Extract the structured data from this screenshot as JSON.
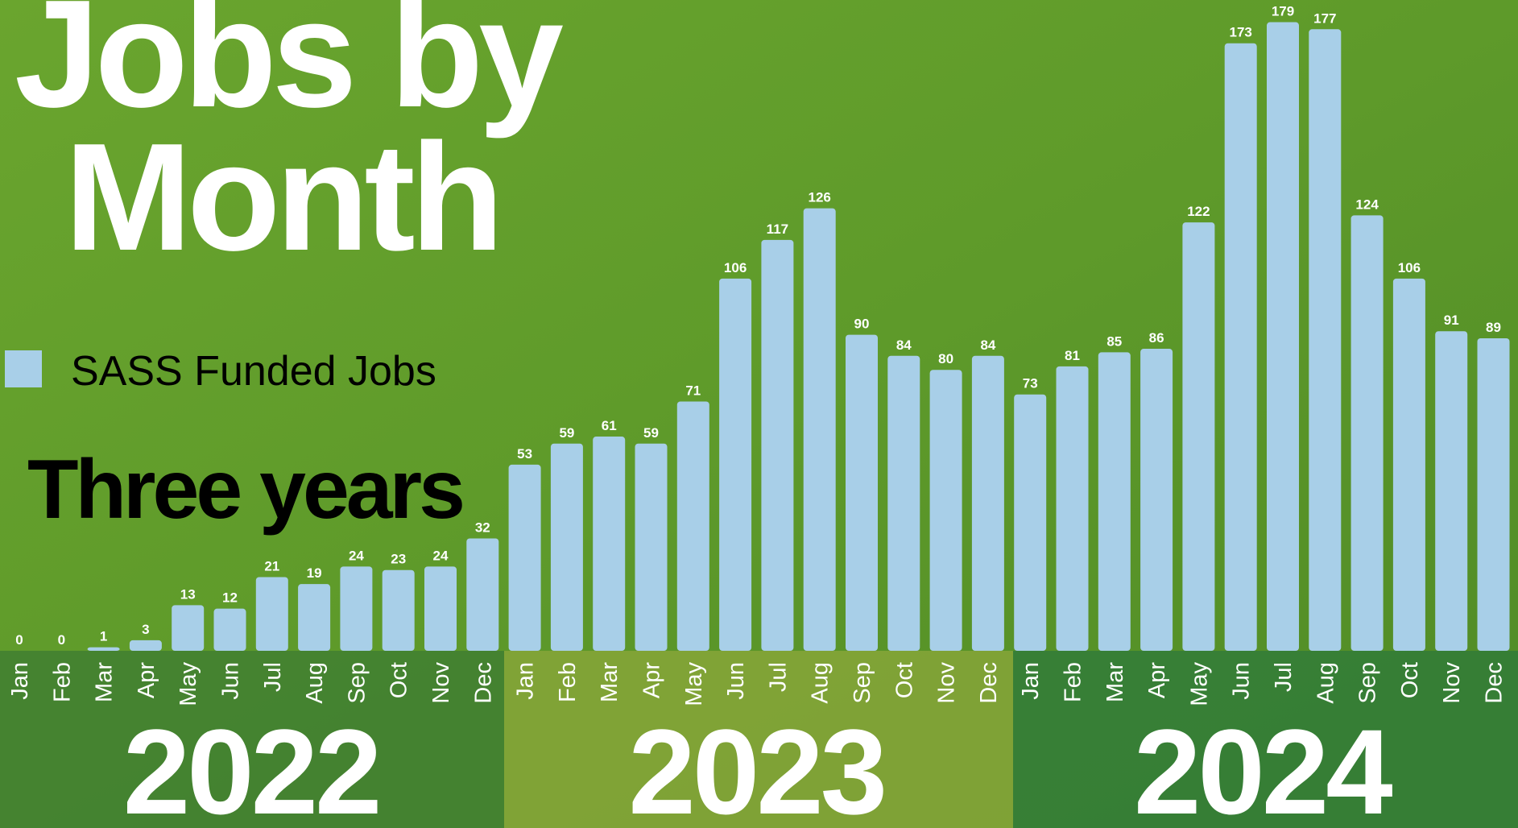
{
  "chart_data": {
    "type": "bar",
    "title": "Jobs by Month",
    "subtitle": "Three years",
    "categories": [
      "Jan",
      "Feb",
      "Mar",
      "Apr",
      "May",
      "Jun",
      "Jul",
      "Aug",
      "Sep",
      "Oct",
      "Nov",
      "Dec",
      "Jan",
      "Feb",
      "Mar",
      "Apr",
      "May",
      "Jun",
      "Jul",
      "Aug",
      "Sep",
      "Oct",
      "Nov",
      "Dec",
      "Jan",
      "Feb",
      "Mar",
      "Apr",
      "May",
      "Jun",
      "Jul",
      "Aug",
      "Sep",
      "Oct",
      "Nov",
      "Dec"
    ],
    "years": [
      "2022",
      "2023",
      "2024"
    ],
    "series": [
      {
        "name": "SASS Funded Jobs",
        "color": "#a8cfe8",
        "values": [
          0,
          0,
          1,
          3,
          13,
          12,
          21,
          19,
          24,
          23,
          24,
          32,
          53,
          59,
          61,
          59,
          71,
          106,
          117,
          126,
          90,
          84,
          80,
          84,
          73,
          81,
          85,
          86,
          122,
          173,
          179,
          177,
          124,
          106,
          91,
          89
        ]
      }
    ]
  }
}
